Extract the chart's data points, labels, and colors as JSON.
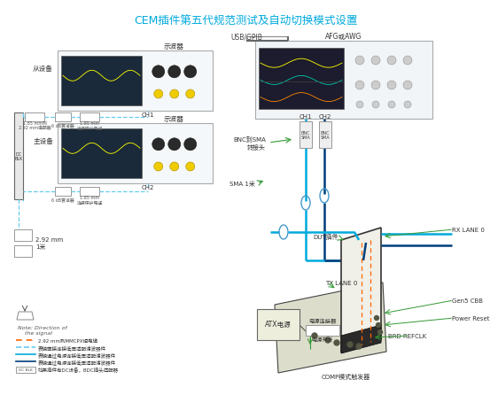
{
  "title": "CEM插件第五代规范测试及自动切换模式设置",
  "title_color": "#00AADD",
  "bg_color": "#FFFFFF",
  "labels": {
    "usb_gpib": "USB/GPIB",
    "afg_awg": "AFG或AWG",
    "slave": "从设备",
    "master": "主设备",
    "oscilloscope": "示波器",
    "ch1": "CH1",
    "ch2": "CH2",
    "ch1b": "CH1",
    "ch2b": "CH2",
    "bnc_sma": "BNC到SMA\n转接头",
    "sma_1m": "SMA 1米",
    "dut": "DUT插件",
    "tx_lane": "TX LANE 0",
    "rx_lane": "RX LANE 0",
    "gen5_cbb": "Gen5 CBB",
    "atx": "ATX电源",
    "power_connector": "电源连接器",
    "power_switch": "电源开关",
    "comp_trigger": "COMP模式触发器",
    "brd_refclk": "BRD REFCLK",
    "power_reset": "Power Reset",
    "cable_292mm": "2.92 mm\n1米",
    "note_direction": "Note: Direction of\n    the signal",
    "legend1": "2.92 mm到MMCPX短电缆",
    "legend2": "表貌直接连接低压适配滤波器件",
    "legend3": "表貌通过电源连接低压适配滤波器件",
    "legend4": "表貌通过电源连接低压适配滤波器件",
    "legend5": "如果插件有DC设备，BDC插头适配器",
    "adapter_185_292": "1.85 mm到\n2.92 mm适配器",
    "filter_6db_1": "6 dB衰减器",
    "cable_185_1": "1.85 mm\n连接保护电缆",
    "filter_6db_2": "6 dB衰减器",
    "cable_185_2": "1.85 mm\n连接保护电缆"
  },
  "colors": {
    "cyan_line": "#00AADD",
    "dark_blue": "#003D7A",
    "orange_dash": "#FF6600",
    "light_blue_dash": "#66CCEE",
    "green_arrow": "#339933",
    "box_border": "#888888"
  }
}
